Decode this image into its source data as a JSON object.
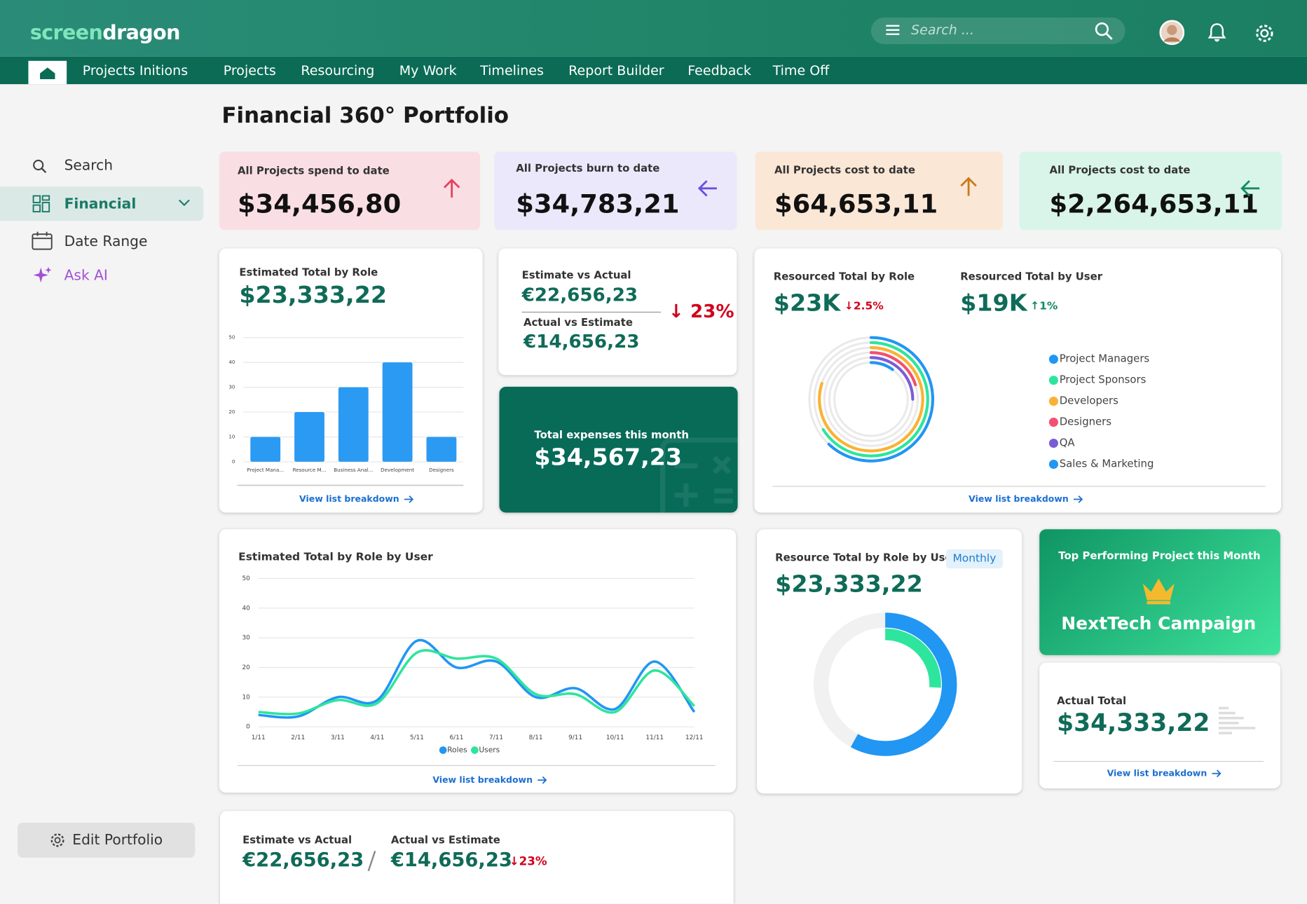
{
  "header": {
    "logo": [
      "screen",
      "dragon"
    ],
    "search_placeholder": "Search ..."
  },
  "nav": {
    "items": [
      "Projects Initions",
      "Projects",
      "Resourcing",
      "My Work",
      "Timelines",
      "Report Builder",
      "Feedback",
      "Time Off"
    ]
  },
  "page_title": "Financial 360° Portfolio",
  "sidebar": {
    "items": [
      "Search",
      "Financial",
      "Date Range",
      "Ask AI"
    ],
    "button": "Edit Portfolio"
  },
  "kpis": [
    {
      "label": "All Projects spend to date",
      "value": "$34,456,80"
    },
    {
      "label": "All Projects burn to date",
      "value": "$34,783,21"
    },
    {
      "label": "All Projects cost to date",
      "value": "$64,653,11"
    },
    {
      "label": "All Projects cost to date",
      "value": "$2,264,653,11"
    }
  ],
  "cards": {
    "role_total": {
      "value": "$23,333,22",
      "link": "View list breakdown"
    },
    "estimate_actual": {
      "label": "Estimate vs Actual",
      "value": "€22,656,23",
      "label2": "Actual vs Estimate",
      "value2": "€14,656,23",
      "change": "↓ 23%"
    },
    "expenses": {
      "label": "Total expenses this month",
      "value": "$34,567,23"
    },
    "resourced": {
      "role_label": "Resourced Total by Role",
      "role_value": "$23K",
      "role_change": "↓2.5%",
      "user_label": "Resourced Total by User",
      "user_value": "$19K",
      "user_change": "↑1%",
      "link": "View list breakdown"
    },
    "role_by_user": {
      "link": "View list breakdown"
    },
    "resource_total": {
      "badge": "Monthly",
      "value": "$23,333,22"
    },
    "top_project": {
      "label": "Top Performing Project this Month",
      "name": "NextTech Campaign"
    },
    "actual_total": {
      "label": "Actual Total",
      "value": "$34,333,22",
      "link": "View list breakdown"
    },
    "comparison": {
      "label": "Estimate vs Actual",
      "value": "€22,656,23",
      "label2": "Actual vs Estimate",
      "value2": "€14,656,23",
      "change": "↓23%"
    }
  },
  "chart_data": [
    {
      "type": "bar",
      "title": "Estimated Total by Role",
      "categories": [
        "Project Mana...",
        "Resource M...",
        "Business Anal...",
        "Development",
        "Designers"
      ],
      "values": [
        10,
        20,
        30,
        40,
        10
      ],
      "color": "#2b9af3",
      "ylim": [
        0,
        50
      ],
      "yticks": [
        0,
        10,
        20,
        30,
        40,
        50
      ],
      "grid": true
    },
    {
      "type": "line",
      "title": "Estimated Total by Role by User",
      "categories": [
        "1/11",
        "2/11",
        "3/11",
        "4/11",
        "5/11",
        "6/11",
        "7/11",
        "8/11",
        "9/11",
        "10/11",
        "11/11",
        "12/11"
      ],
      "series": [
        {
          "name": "Roles",
          "color": "#2196f3",
          "values": [
            4,
            3.5,
            10,
            9,
            29,
            20,
            22,
            10,
            13,
            6,
            22,
            5
          ]
        },
        {
          "name": "Users",
          "color": "#2ee59d",
          "values": [
            5,
            4.5,
            9,
            8,
            25,
            23,
            23,
            11,
            11,
            5,
            19,
            7
          ]
        }
      ],
      "ylim": [
        0,
        50
      ],
      "yticks": [
        0,
        10,
        20,
        30,
        40,
        50
      ],
      "grid": true,
      "legend": "bottom"
    },
    {
      "type": "radial",
      "categories": [
        "Project Managers",
        "Project Sponsors",
        "Developers",
        "Designers",
        "QA",
        "Sales & Marketing"
      ],
      "values": [
        62,
        66,
        80,
        20,
        25,
        10
      ],
      "colors": [
        "#2196f3",
        "#2ee59d",
        "#f9b233",
        "#f2516f",
        "#7b5cd6",
        "#2196f3"
      ],
      "ylim": [
        0,
        100
      ]
    },
    {
      "type": "donut",
      "title": "Resource Total by Role by User",
      "values": [
        58,
        26
      ],
      "colors": [
        "#2196f3",
        "#2ee59d"
      ],
      "ylim": [
        0,
        100
      ]
    }
  ]
}
